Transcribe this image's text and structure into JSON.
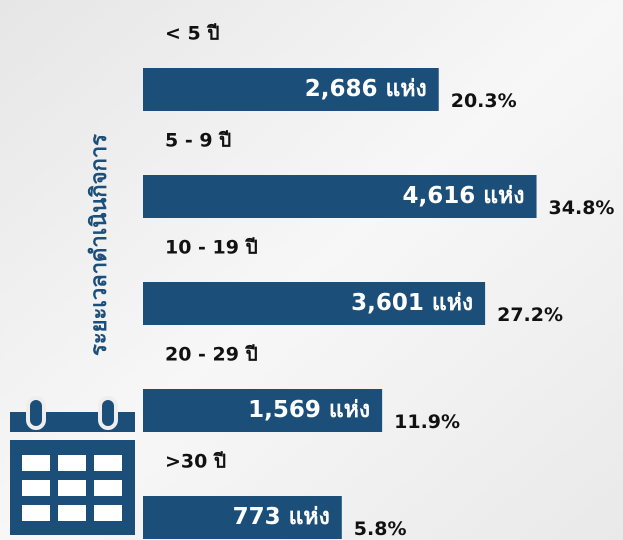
{
  "chart_data": {
    "type": "bar",
    "orientation": "horizontal",
    "y_label": "ระยะเวลาดำเนินกิจการ",
    "categories": [
      "< 5 ปี",
      "5 - 9 ปี",
      "10 - 19 ปี",
      "20 - 29 ปี",
      ">30 ปี"
    ],
    "values": [
      2686,
      4616,
      3601,
      1569,
      773
    ],
    "value_labels": [
      "2,686 แห่ง",
      "4,616 แห่ง",
      "3,601 แห่ง",
      "1,569 แห่ง",
      "773 แห่ง"
    ],
    "percentages": [
      20.3,
      34.8,
      27.2,
      11.9,
      5.8
    ],
    "percentage_labels": [
      "20.3%",
      "34.8%",
      "27.2%",
      "11.9%",
      "5.8%"
    ],
    "color": "#1c4e7a",
    "xlim": [
      -3150,
      5000
    ]
  }
}
